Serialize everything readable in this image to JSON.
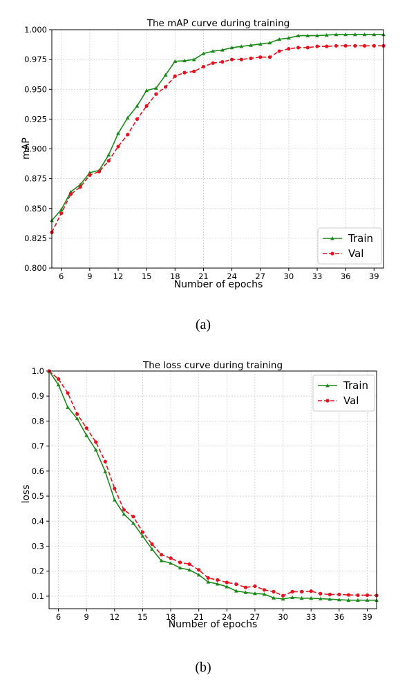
{
  "chart_data": [
    {
      "type": "line",
      "title": "The mAP curve during training",
      "xlabel": "Number of epochs",
      "ylabel": "mAP",
      "xlim": [
        5,
        40
      ],
      "ylim": [
        0.8,
        1.0
      ],
      "xticks": [
        6,
        9,
        12,
        15,
        18,
        21,
        24,
        27,
        30,
        33,
        36,
        39
      ],
      "yticks": [
        0.8,
        0.825,
        0.85,
        0.875,
        0.9,
        0.925,
        0.95,
        0.975,
        1.0
      ],
      "ytick_labels": [
        "0.800",
        "0.825",
        "0.850",
        "0.875",
        "0.900",
        "0.925",
        "0.950",
        "0.975",
        "1.000"
      ],
      "grid": true,
      "legend_position": "lower-right",
      "caption": "(a)",
      "x": [
        5,
        6,
        7,
        8,
        9,
        10,
        11,
        12,
        13,
        14,
        15,
        16,
        17,
        18,
        19,
        20,
        21,
        22,
        23,
        24,
        25,
        26,
        27,
        28,
        29,
        30,
        31,
        32,
        33,
        34,
        35,
        36,
        37,
        38,
        39,
        40
      ],
      "series": [
        {
          "name": "Train",
          "color": "#1a8a1a",
          "marker": "triangle",
          "linestyle": "solid",
          "values": [
            0.84,
            0.849,
            0.864,
            0.87,
            0.88,
            0.882,
            0.895,
            0.913,
            0.926,
            0.936,
            0.949,
            0.951,
            0.962,
            0.9735,
            0.974,
            0.975,
            0.98,
            0.982,
            0.983,
            0.985,
            0.986,
            0.987,
            0.988,
            0.989,
            0.992,
            0.993,
            0.995,
            0.995,
            0.995,
            0.9955,
            0.996,
            0.996,
            0.996,
            0.996,
            0.996,
            0.996
          ]
        },
        {
          "name": "Val",
          "color": "#e8111d",
          "marker": "circle",
          "linestyle": "dashed",
          "values": [
            0.83,
            0.846,
            0.862,
            0.868,
            0.878,
            0.881,
            0.89,
            0.902,
            0.912,
            0.925,
            0.936,
            0.946,
            0.952,
            0.961,
            0.964,
            0.965,
            0.969,
            0.972,
            0.973,
            0.975,
            0.975,
            0.976,
            0.977,
            0.977,
            0.982,
            0.984,
            0.985,
            0.985,
            0.986,
            0.986,
            0.9865,
            0.9865,
            0.9865,
            0.9865,
            0.9865,
            0.9865
          ]
        }
      ]
    },
    {
      "type": "line",
      "title": "The loss curve during training",
      "xlabel": "Number of epochs",
      "ylabel": "loss",
      "xlim": [
        5,
        40
      ],
      "ylim": [
        0.05,
        1.0
      ],
      "xticks": [
        6,
        9,
        12,
        15,
        18,
        21,
        24,
        27,
        30,
        33,
        36,
        39
      ],
      "yticks": [
        0.1,
        0.2,
        0.3,
        0.4,
        0.5,
        0.6,
        0.7,
        0.8,
        0.9,
        1.0
      ],
      "ytick_labels": [
        "0.1",
        "0.2",
        "0.3",
        "0.4",
        "0.5",
        "0.6",
        "0.7",
        "0.8",
        "0.9",
        "1.0"
      ],
      "grid": true,
      "legend_position": "upper-right",
      "caption": "(b)",
      "x": [
        5,
        6,
        7,
        8,
        9,
        10,
        11,
        12,
        13,
        14,
        15,
        16,
        17,
        18,
        19,
        20,
        21,
        22,
        23,
        24,
        25,
        26,
        27,
        28,
        29,
        30,
        31,
        32,
        33,
        34,
        35,
        36,
        37,
        38,
        39,
        40
      ],
      "series": [
        {
          "name": "Train",
          "color": "#1a8a1a",
          "marker": "triangle",
          "linestyle": "solid",
          "values": [
            1.0,
            0.945,
            0.855,
            0.81,
            0.743,
            0.685,
            0.598,
            0.485,
            0.428,
            0.392,
            0.34,
            0.288,
            0.242,
            0.232,
            0.213,
            0.205,
            0.185,
            0.157,
            0.149,
            0.138,
            0.121,
            0.115,
            0.111,
            0.108,
            0.093,
            0.089,
            0.095,
            0.092,
            0.092,
            0.09,
            0.088,
            0.086,
            0.084,
            0.084,
            0.084,
            0.084
          ]
        },
        {
          "name": "Val",
          "color": "#e8111d",
          "marker": "circle",
          "linestyle": "dashed",
          "values": [
            1.0,
            0.968,
            0.912,
            0.828,
            0.772,
            0.716,
            0.638,
            0.53,
            0.445,
            0.418,
            0.356,
            0.308,
            0.266,
            0.252,
            0.235,
            0.228,
            0.205,
            0.173,
            0.165,
            0.155,
            0.148,
            0.135,
            0.14,
            0.125,
            0.118,
            0.102,
            0.118,
            0.118,
            0.12,
            0.11,
            0.107,
            0.107,
            0.105,
            0.104,
            0.104,
            0.103
          ]
        }
      ]
    }
  ]
}
